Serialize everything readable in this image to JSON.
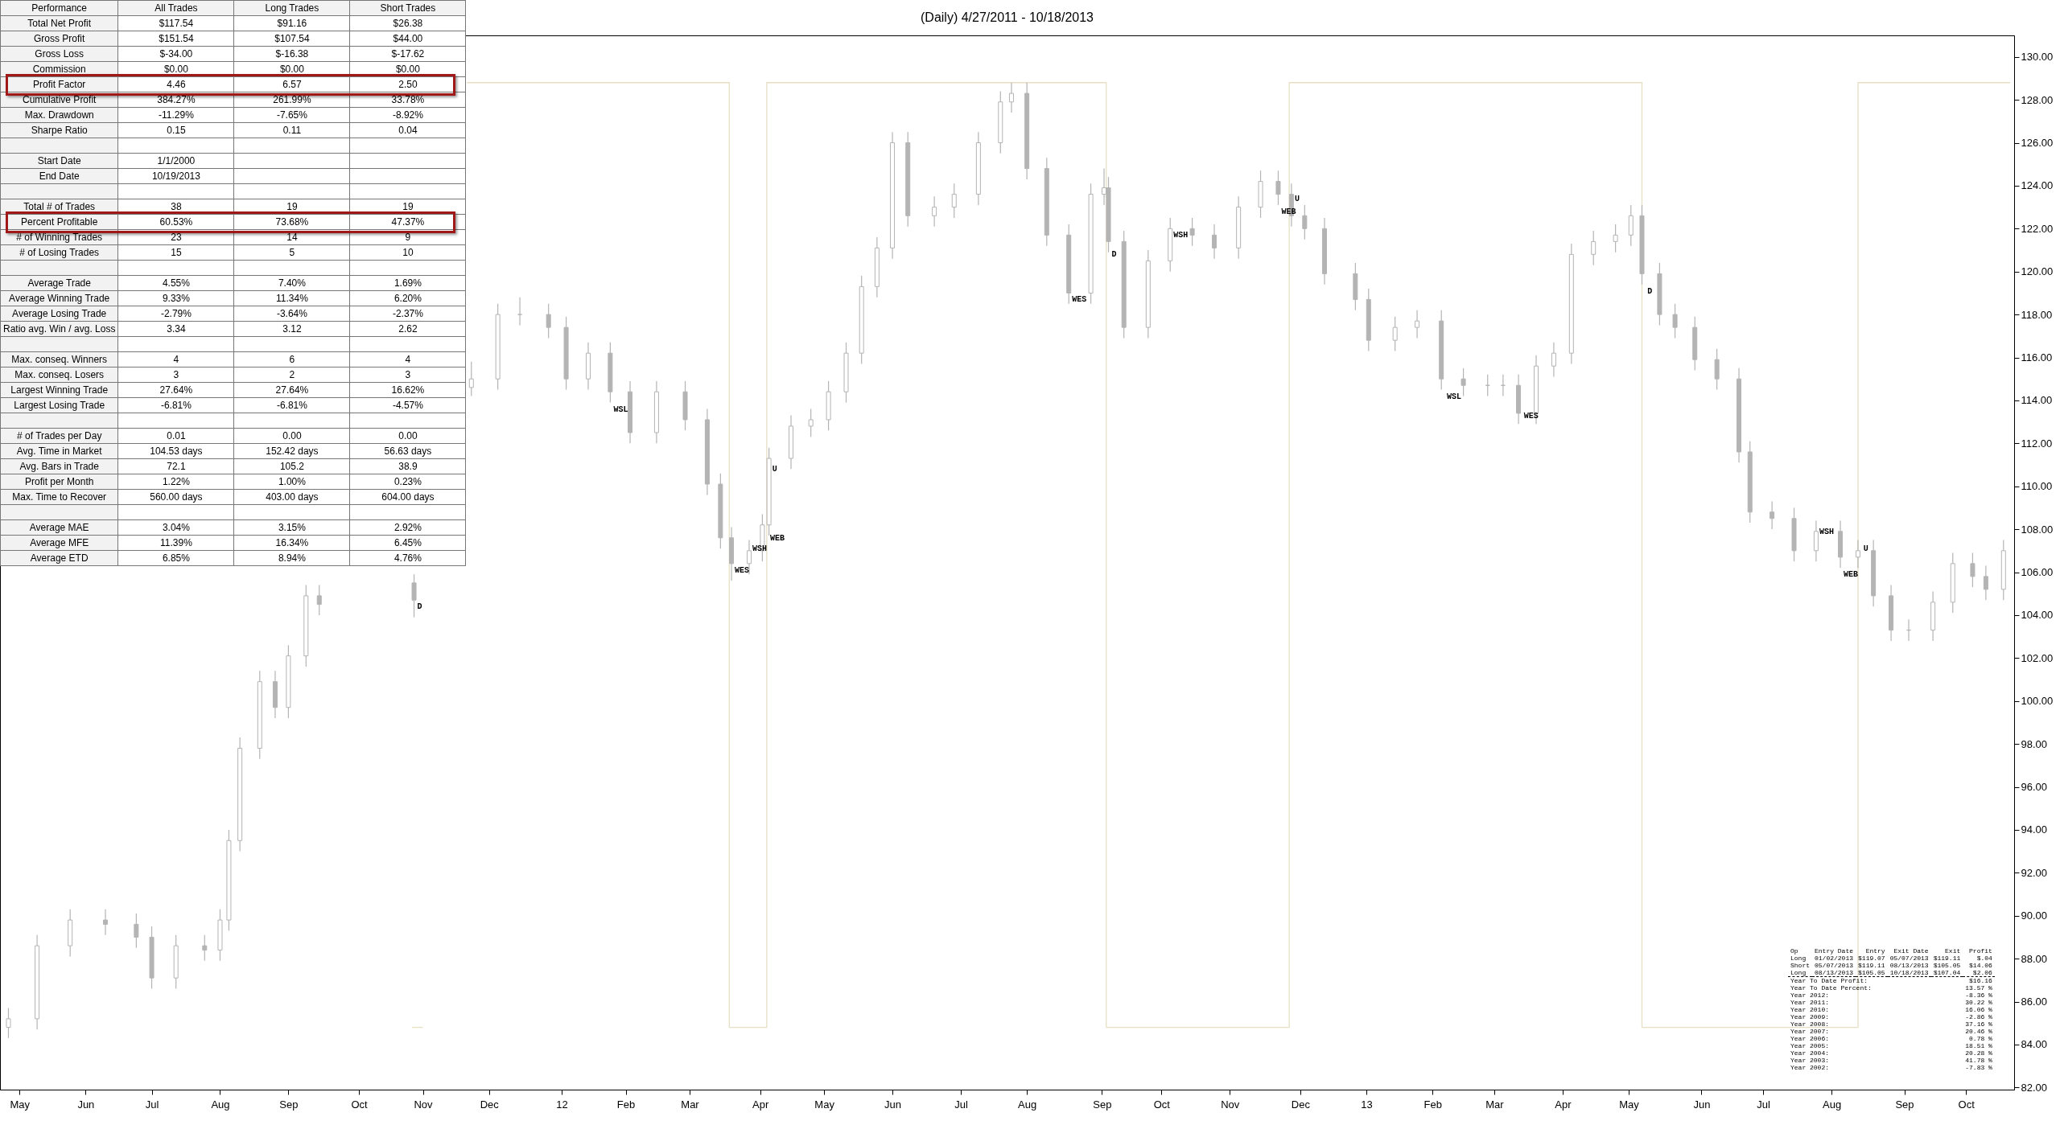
{
  "chart_data": [
    {
      "type": "candlestick",
      "title": "(Daily)  4/27/2011 - 10/18/2013",
      "xlim": [
        "2011-04-25",
        "2013-10-21"
      ],
      "xticks": [
        {
          "value": "2011-05-02",
          "label": "May"
        },
        {
          "value": "2011-06-01",
          "label": "Jun"
        },
        {
          "value": "2011-07-01",
          "label": "Jul"
        },
        {
          "value": "2011-08-01",
          "label": "Aug"
        },
        {
          "value": "2011-09-01",
          "label": "Sep"
        },
        {
          "value": "2011-10-03",
          "label": "Oct"
        },
        {
          "value": "2011-11-01",
          "label": "Nov"
        },
        {
          "value": "2011-12-01",
          "label": "Dec"
        },
        {
          "value": "2012-01-03",
          "label": "12"
        },
        {
          "value": "2012-02-01",
          "label": "Feb"
        },
        {
          "value": "2012-03-01",
          "label": "Mar"
        },
        {
          "value": "2012-04-02",
          "label": "Apr"
        },
        {
          "value": "2012-05-01",
          "label": "May"
        },
        {
          "value": "2012-06-01",
          "label": "Jun"
        },
        {
          "value": "2012-07-02",
          "label": "Jul"
        },
        {
          "value": "2012-08-01",
          "label": "Aug"
        },
        {
          "value": "2012-09-04",
          "label": "Sep"
        },
        {
          "value": "2012-10-01",
          "label": "Oct"
        },
        {
          "value": "2012-11-01",
          "label": "Nov"
        },
        {
          "value": "2012-12-03",
          "label": "Dec"
        },
        {
          "value": "2013-01-02",
          "label": "13"
        },
        {
          "value": "2013-02-01",
          "label": "Feb"
        },
        {
          "value": "2013-03-01",
          "label": "Mar"
        },
        {
          "value": "2013-04-01",
          "label": "Apr"
        },
        {
          "value": "2013-05-01",
          "label": "May"
        },
        {
          "value": "2013-06-03",
          "label": "Jun"
        },
        {
          "value": "2013-07-01",
          "label": "Jul"
        },
        {
          "value": "2013-08-01",
          "label": "Aug"
        },
        {
          "value": "2013-09-03",
          "label": "Sep"
        },
        {
          "value": "2013-10-01",
          "label": "Oct"
        }
      ],
      "ylim": [
        81.9,
        131
      ],
      "yticks": [
        {
          "value": 82,
          "label": "82.00"
        },
        {
          "value": 84,
          "label": "84.00"
        },
        {
          "value": 86,
          "label": "86.00"
        },
        {
          "value": 88,
          "label": "88.00"
        },
        {
          "value": 90,
          "label": "90.00"
        },
        {
          "value": 92,
          "label": "92.00"
        },
        {
          "value": 94,
          "label": "94.00"
        },
        {
          "value": 96,
          "label": "96.00"
        },
        {
          "value": 98,
          "label": "98.00"
        },
        {
          "value": 100,
          "label": "100.00"
        },
        {
          "value": 102,
          "label": "102.00"
        },
        {
          "value": 104,
          "label": "104.00"
        },
        {
          "value": 106,
          "label": "106.00"
        },
        {
          "value": 108,
          "label": "108.00"
        },
        {
          "value": 110,
          "label": "110.00"
        },
        {
          "value": 112,
          "label": "112.00"
        },
        {
          "value": 114,
          "label": "114.00"
        },
        {
          "value": 116,
          "label": "116.00"
        },
        {
          "value": 118,
          "label": "118.00"
        },
        {
          "value": 120,
          "label": "120.00"
        },
        {
          "value": 122,
          "label": "122.00"
        },
        {
          "value": 124,
          "label": "124.00"
        },
        {
          "value": 126,
          "label": "126.00"
        },
        {
          "value": 128,
          "label": "128.00"
        },
        {
          "value": 130,
          "label": "130.00"
        }
      ],
      "series": [
        {
          "type": "step",
          "color": "#e6dfc3",
          "x": [
            "2011-10-27",
            "2011-11-01"
          ],
          "values": [
            84.8,
            84.8
          ]
        },
        {
          "type": "step",
          "color": "#e6dfc3",
          "x": [
            "2011-11-21",
            "2012-03-19",
            "2012-03-19",
            "2012-04-05",
            "2012-04-05",
            "2012-09-06",
            "2012-09-06",
            "2012-11-28",
            "2012-11-28",
            "2013-05-07",
            "2013-05-07",
            "2013-08-13",
            "2013-08-13",
            "2013-10-21"
          ],
          "values": [
            128.8,
            128.8,
            84.8,
            84.8,
            128.8,
            128.8,
            84.8,
            84.8,
            128.8,
            128.8,
            84.8,
            84.8,
            128.8,
            128.8
          ]
        },
        {
          "type": "candlestick",
          "color": "#b4b4b4",
          "x": [
            "2011-04-27",
            "2011-05-10",
            "2011-05-25",
            "2011-06-10",
            "2011-06-24",
            "2011-07-01",
            "2011-07-12",
            "2011-07-25",
            "2011-08-01",
            "2011-08-05",
            "2011-08-10",
            "2011-08-19",
            "2011-08-26",
            "2011-09-01",
            "2011-09-09",
            "2011-09-15",
            "2011-10-28",
            "2011-11-23",
            "2011-12-05",
            "2011-12-15",
            "2011-12-28",
            "2012-01-05",
            "2012-01-15",
            "2012-01-25",
            "2012-02-03",
            "2012-02-15",
            "2012-02-28",
            "2012-03-09",
            "2012-03-15",
            "2012-03-20",
            "2012-03-28",
            "2012-04-03",
            "2012-04-06",
            "2012-04-16",
            "2012-04-25",
            "2012-05-03",
            "2012-05-11",
            "2012-05-18",
            "2012-05-25",
            "2012-06-01",
            "2012-06-08",
            "2012-06-20",
            "2012-06-29",
            "2012-07-10",
            "2012-07-20",
            "2012-07-25",
            "2012-08-01",
            "2012-08-10",
            "2012-08-20",
            "2012-08-30",
            "2012-09-05",
            "2012-09-07",
            "2012-09-14",
            "2012-09-25",
            "2012-10-05",
            "2012-10-15",
            "2012-10-25",
            "2012-11-05",
            "2012-11-15",
            "2012-11-23",
            "2012-11-29",
            "2012-12-05",
            "2012-12-14",
            "2012-12-28",
            "2013-01-03",
            "2013-01-15",
            "2013-01-25",
            "2013-02-05",
            "2013-02-15",
            "2013-02-26",
            "2013-03-05",
            "2013-03-12",
            "2013-03-20",
            "2013-03-28",
            "2013-04-05",
            "2013-04-15",
            "2013-04-25",
            "2013-05-02",
            "2013-05-07",
            "2013-05-15",
            "2013-05-22",
            "2013-05-31",
            "2013-06-10",
            "2013-06-20",
            "2013-06-25",
            "2013-07-05",
            "2013-07-15",
            "2013-07-25",
            "2013-08-05",
            "2013-08-13",
            "2013-08-20",
            "2013-08-28",
            "2013-09-05",
            "2013-09-16",
            "2013-09-25",
            "2013-10-04",
            "2013-10-10",
            "2013-10-18"
          ],
          "ohlc": [
            [
              84.8,
              85.7,
              84.3,
              85.2
            ],
            [
              85.2,
              89.1,
              84.7,
              88.6
            ],
            [
              88.6,
              90.3,
              88.1,
              89.8
            ],
            [
              89.8,
              90.3,
              89.1,
              89.6
            ],
            [
              89.6,
              90.1,
              88.5,
              89.0
            ],
            [
              89.0,
              89.5,
              86.6,
              87.1
            ],
            [
              87.1,
              89.1,
              86.6,
              88.6
            ],
            [
              88.6,
              89.1,
              87.9,
              88.4
            ],
            [
              88.4,
              90.3,
              87.9,
              89.8
            ],
            [
              89.8,
              94.0,
              89.3,
              93.5
            ],
            [
              93.5,
              98.3,
              93.0,
              97.8
            ],
            [
              97.8,
              101.4,
              97.3,
              100.9
            ],
            [
              100.9,
              101.4,
              99.2,
              99.7
            ],
            [
              99.7,
              102.6,
              99.2,
              102.1
            ],
            [
              102.1,
              105.4,
              101.6,
              104.9
            ],
            [
              104.9,
              105.4,
              104.0,
              104.5
            ],
            [
              105.5,
              105.9,
              103.9,
              104.7
            ],
            [
              114.6,
              115.8,
              114.2,
              115.0
            ],
            [
              115.0,
              118.5,
              114.5,
              118.0
            ],
            [
              118.0,
              118.8,
              117.5,
              118.0
            ],
            [
              118.0,
              118.5,
              116.9,
              117.4
            ],
            [
              117.4,
              117.9,
              114.5,
              115.0
            ],
            [
              115.0,
              116.7,
              114.5,
              116.2
            ],
            [
              116.2,
              116.7,
              113.9,
              114.4
            ],
            [
              114.4,
              114.9,
              112.0,
              112.5
            ],
            [
              112.5,
              114.9,
              112.0,
              114.4
            ],
            [
              114.4,
              114.9,
              112.6,
              113.1
            ],
            [
              113.1,
              113.6,
              109.6,
              110.1
            ],
            [
              110.1,
              110.6,
              107.1,
              107.6
            ],
            [
              107.6,
              108.1,
              105.6,
              106.4
            ],
            [
              106.4,
              107.5,
              105.9,
              107.0
            ],
            [
              107.0,
              108.7,
              106.5,
              108.2
            ],
            [
              108.2,
              111.8,
              107.7,
              111.3
            ],
            [
              111.3,
              113.3,
              110.8,
              112.8
            ],
            [
              112.8,
              113.6,
              112.3,
              113.1
            ],
            [
              113.1,
              114.9,
              112.6,
              114.4
            ],
            [
              114.4,
              116.7,
              113.9,
              116.2
            ],
            [
              116.2,
              119.8,
              115.7,
              119.3
            ],
            [
              119.3,
              121.6,
              118.8,
              121.1
            ],
            [
              121.1,
              126.5,
              120.6,
              126.0
            ],
            [
              126.0,
              126.5,
              122.1,
              122.6
            ],
            [
              122.6,
              123.5,
              122.1,
              123.0
            ],
            [
              123.0,
              124.1,
              122.5,
              123.6
            ],
            [
              123.6,
              126.5,
              123.1,
              126.0
            ],
            [
              126.0,
              128.4,
              125.5,
              127.9
            ],
            [
              127.9,
              128.8,
              127.4,
              128.3
            ],
            [
              128.3,
              128.8,
              124.3,
              124.8
            ],
            [
              124.8,
              125.3,
              121.2,
              121.7
            ],
            [
              121.7,
              122.2,
              118.5,
              119.0
            ],
            [
              119.0,
              124.1,
              118.5,
              123.6
            ],
            [
              123.6,
              124.8,
              123.1,
              123.9
            ],
            [
              123.9,
              124.4,
              120.9,
              121.4
            ],
            [
              121.4,
              121.9,
              116.9,
              117.4
            ],
            [
              117.4,
              121.0,
              116.9,
              120.5
            ],
            [
              120.5,
              122.5,
              120.0,
              122.0
            ],
            [
              122.0,
              122.5,
              121.2,
              121.7
            ],
            [
              121.7,
              122.2,
              120.6,
              121.1
            ],
            [
              121.1,
              123.5,
              120.6,
              123.0
            ],
            [
              123.0,
              124.7,
              122.5,
              124.2
            ],
            [
              124.2,
              124.7,
              123.1,
              123.6
            ],
            [
              123.6,
              124.1,
              122.1,
              122.6
            ],
            [
              122.6,
              123.1,
              121.5,
              122.0
            ],
            [
              122.0,
              122.5,
              119.4,
              119.9
            ],
            [
              119.9,
              120.4,
              118.2,
              118.7
            ],
            [
              118.7,
              119.2,
              116.3,
              116.8
            ],
            [
              116.8,
              117.9,
              116.3,
              117.4
            ],
            [
              117.4,
              118.2,
              116.9,
              117.7
            ],
            [
              117.7,
              118.2,
              114.5,
              115.0
            ],
            [
              115.0,
              115.5,
              114.2,
              114.7
            ],
            [
              114.7,
              115.2,
              114.2,
              114.7
            ],
            [
              114.7,
              115.2,
              114.2,
              114.7
            ],
            [
              114.7,
              115.2,
              112.9,
              113.4
            ],
            [
              113.4,
              116.1,
              112.9,
              115.6
            ],
            [
              115.6,
              116.7,
              115.1,
              116.2
            ],
            [
              116.2,
              121.3,
              115.7,
              120.8
            ],
            [
              120.8,
              121.9,
              120.3,
              121.4
            ],
            [
              121.4,
              122.2,
              120.9,
              121.7
            ],
            [
              121.7,
              123.1,
              121.2,
              122.6
            ],
            [
              122.6,
              123.1,
              119.4,
              119.9
            ],
            [
              119.9,
              120.4,
              117.5,
              118.0
            ],
            [
              118.0,
              118.5,
              116.9,
              117.4
            ],
            [
              117.4,
              117.9,
              115.4,
              115.9
            ],
            [
              115.9,
              116.4,
              114.5,
              115.0
            ],
            [
              115.0,
              115.5,
              111.1,
              111.6
            ],
            [
              111.6,
              112.1,
              108.3,
              108.8
            ],
            [
              108.8,
              109.3,
              108.0,
              108.5
            ],
            [
              108.5,
              109.0,
              106.5,
              107.0
            ],
            [
              107.0,
              108.4,
              106.5,
              107.9
            ],
            [
              107.9,
              108.4,
              106.2,
              106.7
            ],
            [
              106.7,
              107.5,
              106.2,
              107.0
            ],
            [
              107.0,
              107.5,
              104.4,
              104.9
            ],
            [
              104.9,
              105.4,
              102.8,
              103.3
            ],
            [
              103.3,
              103.8,
              102.8,
              103.3
            ],
            [
              103.3,
              105.1,
              102.8,
              104.6
            ],
            [
              104.6,
              106.9,
              104.1,
              106.4
            ],
            [
              106.4,
              106.9,
              105.3,
              105.8
            ],
            [
              105.8,
              106.3,
              104.7,
              105.2
            ],
            [
              105.2,
              107.5,
              104.7,
              107.0
            ]
          ]
        }
      ],
      "annotations": [
        {
          "text": "D",
          "x": "2011-10-28",
          "y": 104.7
        },
        {
          "text": "WSL",
          "x": "2012-01-25",
          "y": 113.9
        },
        {
          "text": "WES",
          "x": "2012-03-20",
          "y": 106.4
        },
        {
          "text": "WSH",
          "x": "2012-03-28",
          "y": 107.4
        },
        {
          "text": "WEB",
          "x": "2012-04-05",
          "y": 107.9
        },
        {
          "text": "U",
          "x": "2012-04-06",
          "y": 111.1
        },
        {
          "text": "WES",
          "x": "2012-08-20",
          "y": 119.0
        },
        {
          "text": "D",
          "x": "2012-09-07",
          "y": 121.1
        },
        {
          "text": "WSH",
          "x": "2012-10-05",
          "y": 122.0
        },
        {
          "text": "WEB",
          "x": "2012-11-23",
          "y": 123.1
        },
        {
          "text": "U",
          "x": "2012-11-29",
          "y": 123.7
        },
        {
          "text": "WSL",
          "x": "2013-02-06",
          "y": 114.5
        },
        {
          "text": "WES",
          "x": "2013-03-13",
          "y": 113.6
        },
        {
          "text": "D",
          "x": "2013-05-08",
          "y": 119.4
        },
        {
          "text": "WSH",
          "x": "2013-07-25",
          "y": 108.2
        },
        {
          "text": "WEB",
          "x": "2013-08-05",
          "y": 106.2
        },
        {
          "text": "U",
          "x": "2013-08-14",
          "y": 107.4
        }
      ]
    },
    {
      "type": "other",
      "categories": [
        "Performance",
        "All Trades",
        "Long Trades",
        "Short Trades"
      ],
      "cell_labels": [
        [
          "Total Net Profit",
          "$117.54",
          "$91.16",
          "$26.38"
        ],
        [
          "Gross Profit",
          "$151.54",
          "$107.54",
          "$44.00"
        ],
        [
          "Gross Loss",
          "$-34.00",
          "$-16.38",
          "$-17.62"
        ],
        [
          "Commission",
          "$0.00",
          "$0.00",
          "$0.00"
        ],
        [
          "Profit Factor",
          "4.46",
          "6.57",
          "2.50"
        ],
        [
          "Cumulative Profit",
          "384.27%",
          "261.99%",
          "33.78%"
        ],
        [
          "Max. Drawdown",
          "-11.29%",
          "-7.65%",
          "-8.92%"
        ],
        [
          "Sharpe Ratio",
          "0.15",
          "0.11",
          "0.04"
        ],
        [
          null,
          null,
          null,
          null
        ],
        [
          "Start Date",
          "1/1/2000",
          null,
          null
        ],
        [
          "End Date",
          "10/19/2013",
          null,
          null
        ],
        [
          null,
          null,
          null,
          null
        ],
        [
          "Total # of Trades",
          "38",
          "19",
          "19"
        ],
        [
          "Percent Profitable",
          "60.53%",
          "73.68%",
          "47.37%"
        ],
        [
          "# of Winning Trades",
          "23",
          "14",
          "9"
        ],
        [
          "# of Losing Trades",
          "15",
          "5",
          "10"
        ],
        [
          null,
          null,
          null,
          null
        ],
        [
          "Average Trade",
          "4.55%",
          "7.40%",
          "1.69%"
        ],
        [
          "Average Winning Trade",
          "9.33%",
          "11.34%",
          "6.20%"
        ],
        [
          "Average Losing Trade",
          "-2.79%",
          "-3.64%",
          "-2.37%"
        ],
        [
          "Ratio avg. Win / avg. Loss",
          "3.34",
          "3.12",
          "2.62"
        ],
        [
          null,
          null,
          null,
          null
        ],
        [
          "Max. conseq. Winners",
          "4",
          "6",
          "4"
        ],
        [
          "Max. conseq. Losers",
          "3",
          "2",
          "3"
        ],
        [
          "Largest Winning Trade",
          "27.64%",
          "27.64%",
          "16.62%"
        ],
        [
          "Largest Losing Trade",
          "-6.81%",
          "-6.81%",
          "-4.57%"
        ],
        [
          null,
          null,
          null,
          null
        ],
        [
          "# of Trades per Day",
          "0.01",
          "0.00",
          "0.00"
        ],
        [
          "Avg. Time in Market",
          "104.53 days",
          "152.42 days",
          "56.63 days"
        ],
        [
          "Avg. Bars in Trade",
          "72.1",
          "105.2",
          "38.9"
        ],
        [
          "Profit per Month",
          "1.22%",
          "1.00%",
          "0.23%"
        ],
        [
          "Max. Time to Recover",
          "560.00 days",
          "403.00 days",
          "604.00 days"
        ],
        [
          null,
          null,
          null,
          null
        ],
        [
          "Average MAE",
          "3.04%",
          "3.15%",
          "2.92%"
        ],
        [
          "Average MFE",
          "11.39%",
          "16.34%",
          "6.45%"
        ],
        [
          "Average ETD",
          "6.85%",
          "8.94%",
          "4.76%"
        ]
      ]
    },
    {
      "type": "other",
      "categories": [
        "Op",
        "Entry Date",
        "Entry",
        "Exit Date",
        "Exit",
        "Profit"
      ],
      "cell_labels": [
        [
          "Long",
          "01/02/2013",
          "$119.07",
          "05/07/2013",
          "$119.11",
          "$.04"
        ],
        [
          "Short",
          "05/07/2013",
          "$119.11",
          "08/13/2013",
          "$105.05",
          "$14.06"
        ],
        [
          "Long",
          "08/13/2013",
          "$105.05",
          "10/18/2013",
          "$107.04",
          "$2.06"
        ],
        [
          "Year To Date Profit:",
          null,
          null,
          null,
          null,
          "$16.16"
        ],
        [
          "Year To Date Percent:",
          null,
          null,
          null,
          null,
          "13.57 %"
        ],
        [
          "Year 2012:",
          null,
          null,
          null,
          null,
          "-8.36 %"
        ],
        [
          "Year 2011:",
          null,
          null,
          null,
          null,
          "30.22 %"
        ],
        [
          "Year 2010:",
          null,
          null,
          null,
          null,
          "16.06 %"
        ],
        [
          "Year 2009:",
          null,
          null,
          null,
          null,
          "-2.86 %"
        ],
        [
          "Year 2008:",
          null,
          null,
          null,
          null,
          "37.16 %"
        ],
        [
          "Year 2007:",
          null,
          null,
          null,
          null,
          "20.46 %"
        ],
        [
          "Year 2006:",
          null,
          null,
          null,
          null,
          "0.78 %"
        ],
        [
          "Year 2005:",
          null,
          null,
          null,
          null,
          "18.51 %"
        ],
        [
          "Year 2004:",
          null,
          null,
          null,
          null,
          "20.28 %"
        ],
        [
          "Year 2003:",
          null,
          null,
          null,
          null,
          "41.78 %"
        ],
        [
          "Year 2002:",
          null,
          null,
          null,
          null,
          "-7.83 %"
        ]
      ]
    }
  ]
}
